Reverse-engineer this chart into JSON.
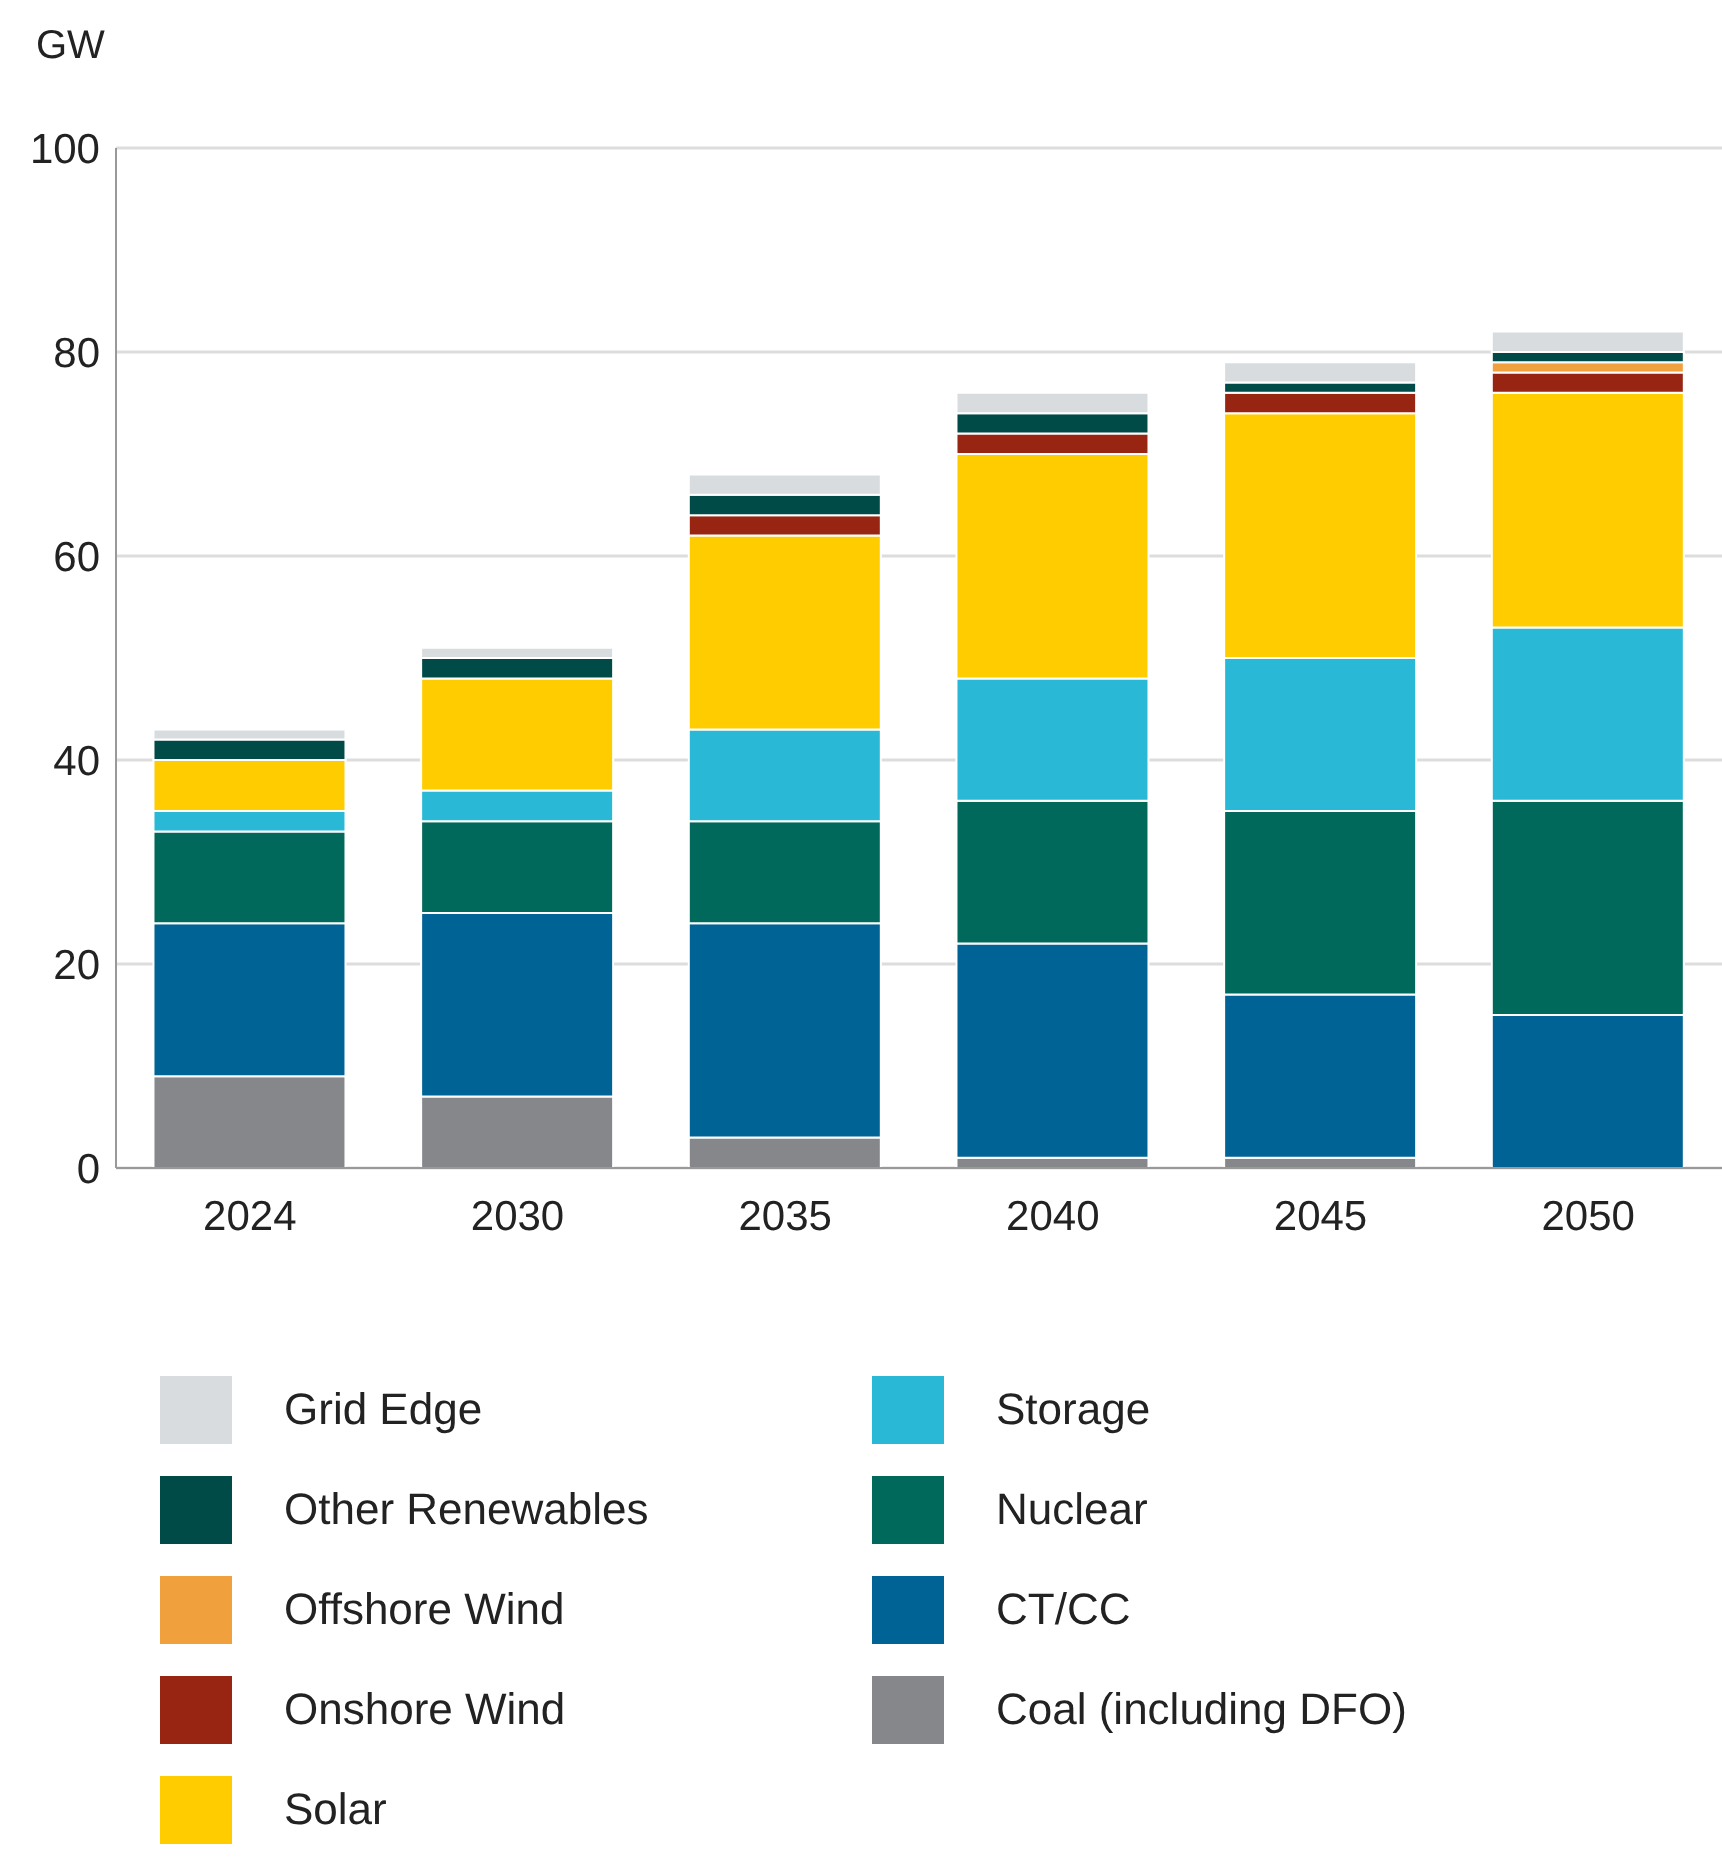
{
  "chart_data": {
    "type": "bar",
    "stacked": true,
    "ylabel": "GW",
    "categories": [
      "2024",
      "2030",
      "2035",
      "2040",
      "2045",
      "2050"
    ],
    "ylim": [
      0,
      100
    ],
    "yticks": [
      0,
      20,
      40,
      60,
      80,
      100
    ],
    "grid": "y",
    "legend": "bottom",
    "series": [
      {
        "name": "Coal (including DFO)",
        "color": "#85878a",
        "values": [
          9,
          7,
          3,
          1,
          1,
          0
        ]
      },
      {
        "name": "CT/CC",
        "color": "#006395",
        "values": [
          15,
          18,
          21,
          21,
          16,
          15
        ]
      },
      {
        "name": "Nuclear",
        "color": "#00695c",
        "values": [
          9,
          9,
          10,
          14,
          18,
          21
        ]
      },
      {
        "name": "Storage",
        "color": "#29b9d6",
        "values": [
          2,
          3,
          9,
          12,
          15,
          17
        ]
      },
      {
        "name": "Solar",
        "color": "#ffcc00",
        "values": [
          5,
          11,
          19,
          22,
          24,
          23
        ]
      },
      {
        "name": "Onshore Wind",
        "color": "#982412",
        "values": [
          0,
          0,
          2,
          2,
          2,
          2
        ]
      },
      {
        "name": "Offshore Wind",
        "color": "#f0a03c",
        "values": [
          0,
          0,
          0,
          0,
          0,
          1
        ]
      },
      {
        "name": "Other Renewables",
        "color": "#004a47",
        "values": [
          2,
          2,
          2,
          2,
          1,
          1
        ]
      },
      {
        "name": "Grid Edge",
        "color": "#d9dcdf",
        "values": [
          1,
          1,
          2,
          2,
          2,
          2
        ]
      }
    ]
  }
}
